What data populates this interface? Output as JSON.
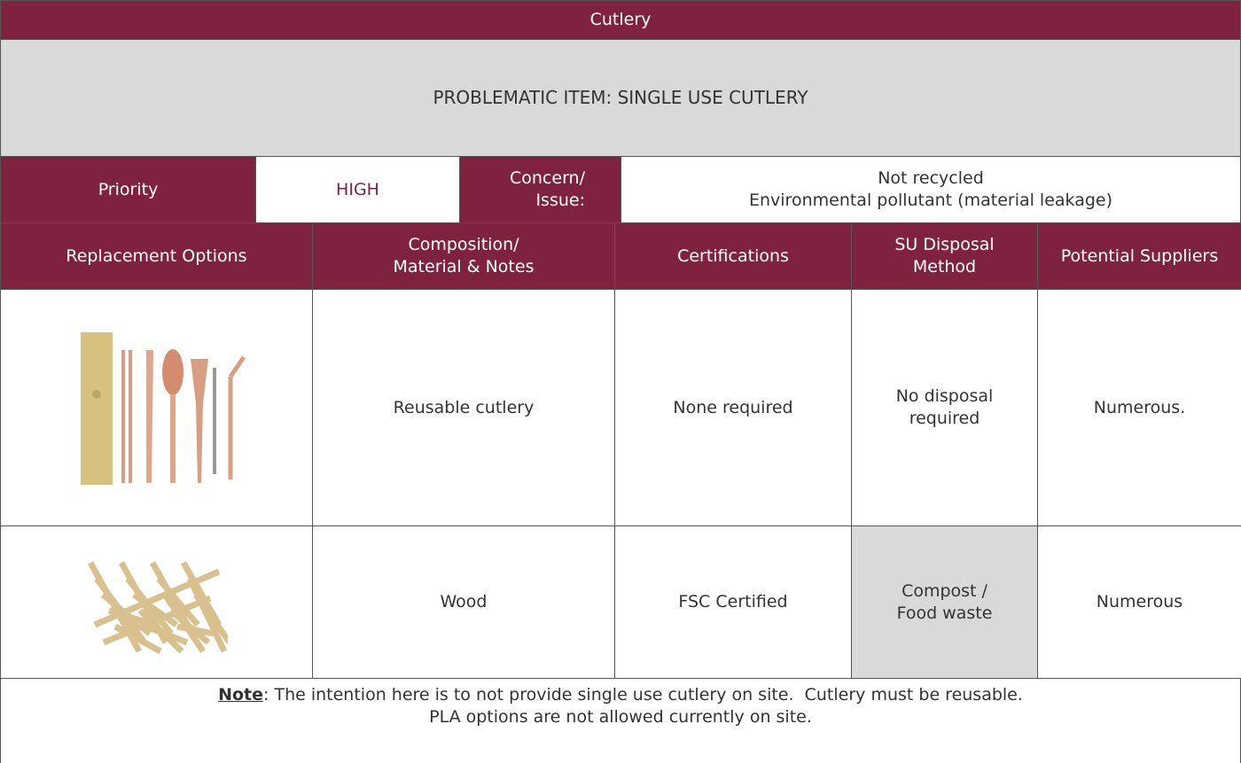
{
  "title": "Cutlery",
  "problem": "PROBLEMATIC ITEM: SINGLE USE CUTLERY",
  "priority": {
    "label": "Priority",
    "value": "HIGH"
  },
  "concern": {
    "label": [
      "Concern/",
      "Issue:"
    ],
    "lines": [
      "Not recycled",
      "Environmental pollutant (material leakage)"
    ]
  },
  "table": {
    "headers": [
      [
        "Replacement Options"
      ],
      [
        "Composition/",
        "Material & Notes"
      ],
      [
        "Certifications"
      ],
      [
        "SU Disposal",
        "Method"
      ],
      [
        "Potential Suppliers"
      ]
    ],
    "rows": [
      [
        [
          "Reusable cutlery"
        ],
        [
          "None required"
        ],
        [
          "No disposal",
          "required"
        ],
        [
          "Numerous."
        ]
      ],
      [
        [
          "Wood"
        ],
        [
          "FSC Certified"
        ],
        [
          "Compost /",
          "Food waste"
        ],
        [
          "Numerous"
        ]
      ]
    ]
  },
  "note": {
    "label": "Note",
    "text": ": The intention here is to not provide single use cutlery on site.  Cutlery must be reusable.",
    "line2": "PLA options are not allowed currently on site."
  }
}
